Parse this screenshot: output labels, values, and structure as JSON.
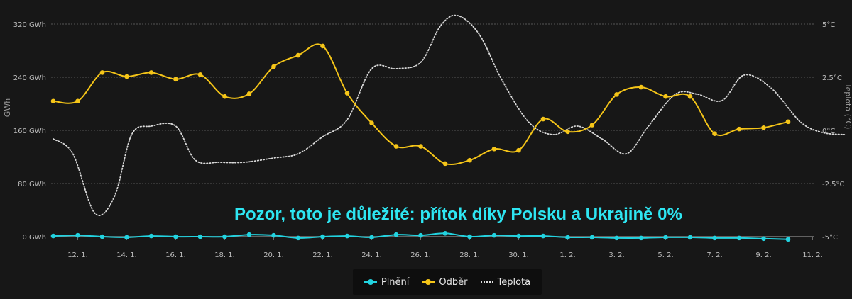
{
  "chart_data": {
    "type": "line",
    "annotation": "Pozor, toto je důležité: přítok díky Polsku a Ukrajině 0%",
    "ylabel_left": "GWh",
    "ylabel_right": "Teplota (°C)",
    "y_left_ticks": [
      "0 GWh",
      "80 GWh",
      "160 GWh",
      "240 GWh",
      "320 GWh"
    ],
    "y_left_range": [
      0,
      320
    ],
    "y_right_ticks": [
      "-5°C",
      "-2.5°C",
      "0°C",
      "2.5°C",
      "5°C"
    ],
    "y_right_range": [
      -5,
      5
    ],
    "x_range": [
      11,
      43.5
    ],
    "x_ticks": [
      {
        "label": "12. 1.",
        "x": 12
      },
      {
        "label": "14. 1.",
        "x": 14
      },
      {
        "label": "16. 1.",
        "x": 16
      },
      {
        "label": "18. 1.",
        "x": 18
      },
      {
        "label": "20. 1.",
        "x": 20
      },
      {
        "label": "22. 1.",
        "x": 22
      },
      {
        "label": "24. 1.",
        "x": 24
      },
      {
        "label": "26. 1.",
        "x": 26
      },
      {
        "label": "28. 1.",
        "x": 28
      },
      {
        "label": "30. 1.",
        "x": 30
      },
      {
        "label": "1. 2.",
        "x": 32
      },
      {
        "label": "3. 2.",
        "x": 34
      },
      {
        "label": "5. 2.",
        "x": 36
      },
      {
        "label": "7. 2.",
        "x": 38
      },
      {
        "label": "9. 2.",
        "x": 40
      },
      {
        "label": "11. 2.",
        "x": 42
      }
    ],
    "series": [
      {
        "name": "Plnění",
        "color": "#22d3e0",
        "axis": "left",
        "x": [
          11,
          12,
          13,
          14,
          15,
          16,
          17,
          18,
          19,
          20,
          21,
          22,
          23,
          24,
          25,
          26,
          27,
          28,
          29,
          30,
          31,
          32,
          33,
          34,
          35,
          36,
          37,
          38,
          39,
          40,
          41
        ],
        "values": [
          1,
          2,
          0,
          -1,
          1,
          0,
          0,
          0,
          3,
          2,
          -2,
          0,
          1,
          -1,
          3,
          2,
          5,
          0,
          2,
          1,
          1,
          -1,
          -1,
          -2,
          -2,
          -1,
          -1,
          -2,
          -2,
          -3,
          -4
        ]
      },
      {
        "name": "Odběr",
        "color": "#f5c518",
        "axis": "left",
        "x": [
          11,
          12,
          13,
          14,
          15,
          16,
          17,
          18,
          19,
          20,
          21,
          22,
          23,
          24,
          25,
          26,
          27,
          28,
          29,
          30,
          31,
          32,
          33,
          34,
          35,
          36,
          37,
          38,
          39,
          40,
          41
        ],
        "values": [
          204,
          204,
          247,
          241,
          247,
          237,
          244,
          211,
          215,
          256,
          273,
          287,
          216,
          171,
          136,
          136,
          110,
          115,
          132,
          130,
          177,
          158,
          168,
          214,
          225,
          211,
          211,
          155,
          162,
          164,
          173
        ]
      },
      {
        "name": "Teplota",
        "color": "#d8d8d8",
        "axis": "right",
        "dotted": true,
        "x": [
          11,
          11.8,
          12.7,
          13.5,
          14.2,
          15,
          16,
          16.8,
          17.8,
          18.8,
          20,
          21,
          22,
          23,
          24,
          25,
          26,
          26.8,
          27.5,
          28.4,
          29.3,
          30.4,
          31.4,
          32.4,
          33.4,
          34.4,
          35.3,
          36.4,
          37.3,
          38.3,
          39.2,
          40.3,
          41.5,
          42.4,
          43.3
        ],
        "values": [
          -0.4,
          -1.1,
          -3.9,
          -3.1,
          -0.2,
          0.2,
          0.2,
          -1.4,
          -1.5,
          -1.5,
          -1.3,
          -1.1,
          -0.3,
          0.5,
          2.9,
          2.9,
          3.2,
          4.9,
          5.4,
          4.5,
          2.4,
          0.4,
          -0.2,
          0.2,
          -0.4,
          -1.1,
          0.2,
          1.7,
          1.7,
          1.4,
          2.6,
          2.0,
          0.4,
          -0.1,
          -0.2
        ]
      }
    ],
    "grid": true,
    "legend": {
      "position": "bottom-center",
      "items": [
        "Plnění",
        "Odběr",
        "Teplota"
      ]
    }
  }
}
